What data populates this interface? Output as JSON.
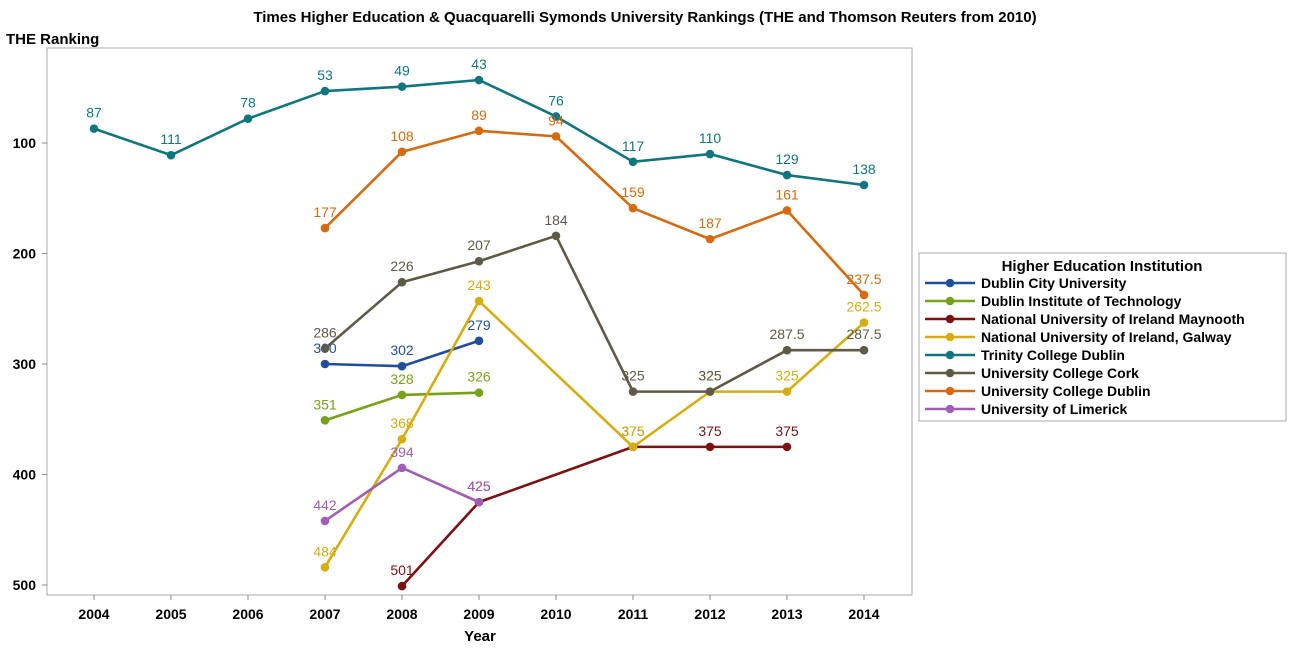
{
  "chart_data": {
    "type": "line",
    "title": "Times Higher Education & Quacquarelli Symonds University Rankings (THE and Thomson Reuters from 2010)",
    "xlabel": "Year",
    "ylabel": "THE Ranking",
    "x": [
      2004,
      2005,
      2006,
      2007,
      2008,
      2009,
      2010,
      2011,
      2012,
      2013,
      2014
    ],
    "ylim": [
      510,
      30
    ],
    "y_inverted": true,
    "yticks": [
      100,
      200,
      300,
      400,
      500
    ],
    "grid": false,
    "legend": {
      "title": "Higher Education Institution",
      "position": "right"
    },
    "series": [
      {
        "name": "Dublin City University",
        "color": "#1f4e9c",
        "points": [
          [
            2007,
            300
          ],
          [
            2008,
            302
          ],
          [
            2009,
            279
          ]
        ]
      },
      {
        "name": "Dublin Institute of Technology",
        "color": "#77a11a",
        "points": [
          [
            2007,
            351
          ],
          [
            2008,
            328
          ],
          [
            2009,
            326
          ]
        ]
      },
      {
        "name": "National University of Ireland Maynooth",
        "color": "#7b1111",
        "points": [
          [
            2008,
            501
          ],
          [
            2009,
            425
          ],
          [
            2011,
            375
          ],
          [
            2012,
            375
          ],
          [
            2013,
            375
          ]
        ]
      },
      {
        "name": "National University of Ireland, Galway",
        "color": "#d6ad0f",
        "points": [
          [
            2007,
            484
          ],
          [
            2008,
            368
          ],
          [
            2009,
            243
          ],
          [
            2011,
            375
          ],
          [
            2012,
            325
          ],
          [
            2013,
            325
          ],
          [
            2014,
            262.5
          ]
        ]
      },
      {
        "name": "Trinity College Dublin",
        "color": "#117580",
        "points": [
          [
            2004,
            87
          ],
          [
            2005,
            111
          ],
          [
            2006,
            78
          ],
          [
            2007,
            53
          ],
          [
            2008,
            49
          ],
          [
            2009,
            43
          ],
          [
            2010,
            76
          ],
          [
            2011,
            117
          ],
          [
            2012,
            110
          ],
          [
            2013,
            129
          ],
          [
            2014,
            138
          ]
        ]
      },
      {
        "name": "University College Cork",
        "color": "#5e5a46",
        "points": [
          [
            2007,
            286
          ],
          [
            2008,
            226
          ],
          [
            2009,
            207
          ],
          [
            2010,
            184
          ],
          [
            2011,
            325
          ],
          [
            2012,
            325
          ],
          [
            2013,
            287.5
          ],
          [
            2014,
            287.5
          ]
        ]
      },
      {
        "name": "University College Dublin",
        "color": "#d66a10",
        "points": [
          [
            2007,
            177
          ],
          [
            2008,
            108
          ],
          [
            2009,
            89
          ],
          [
            2010,
            94
          ],
          [
            2011,
            159
          ],
          [
            2012,
            187
          ],
          [
            2013,
            161
          ],
          [
            2014,
            237.5
          ]
        ]
      },
      {
        "name": "University of Limerick",
        "color": "#a15db5",
        "points": [
          [
            2007,
            442
          ],
          [
            2008,
            394
          ],
          [
            2009,
            425
          ]
        ]
      }
    ]
  }
}
